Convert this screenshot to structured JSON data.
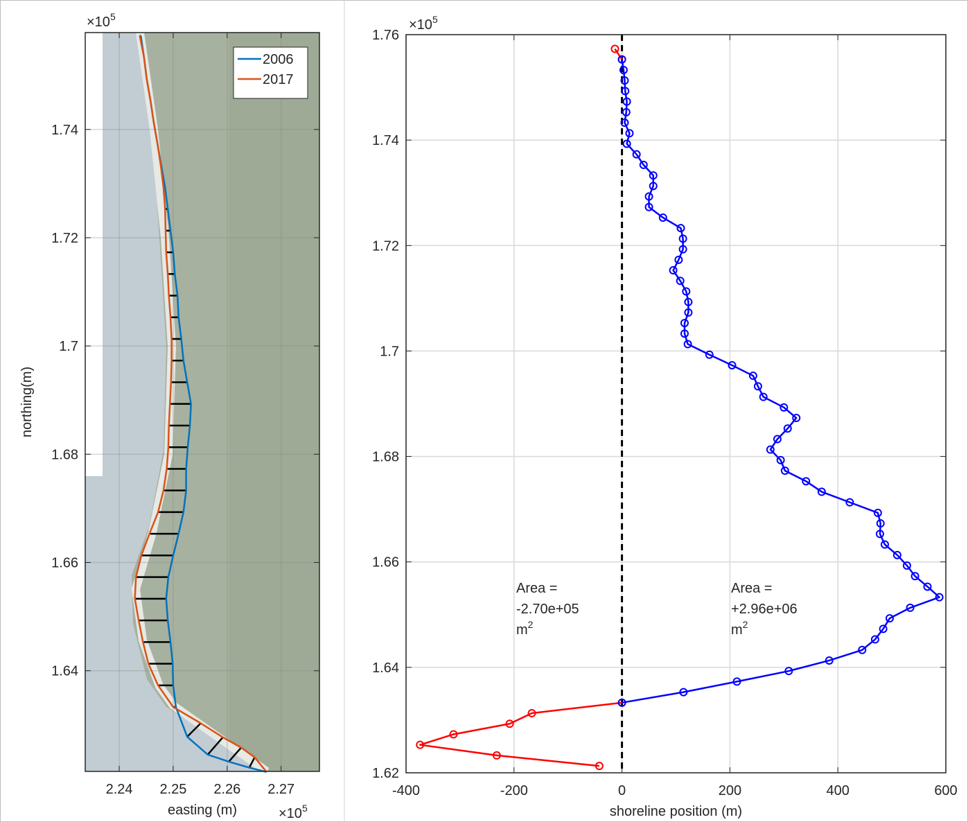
{
  "chart_data": [
    {
      "type": "line",
      "xlabel": "easting (m)",
      "ylabel": "northing(m)",
      "x_multiplier": {
        "base": "×10",
        "exponent": "5"
      },
      "y_multiplier": {
        "base": "×10",
        "exponent": "5"
      },
      "xlim": [
        2.2337,
        2.2771
      ],
      "ylim": [
        1.6214,
        1.7579
      ],
      "xticks": [
        2.24,
        2.25,
        2.26,
        2.27
      ],
      "yticks": [
        1.64,
        1.66,
        1.68,
        1.7,
        1.72,
        1.74
      ],
      "grid": true,
      "legend": "top-right",
      "transects": true,
      "transect_color": "#000000",
      "series": [
        {
          "name": "2006",
          "color": "#0072bd",
          "x": [
            2.244,
            2.2446,
            2.2451,
            2.2458,
            2.2464,
            2.2471,
            2.2478,
            2.2485,
            2.249,
            2.2495,
            2.25,
            2.2503,
            2.2508,
            2.251,
            2.2515,
            2.2519,
            2.2526,
            2.2533,
            2.2531,
            2.2527,
            2.2524,
            2.2524,
            2.2519,
            2.251,
            2.25,
            2.2491,
            2.2487,
            2.249,
            2.2495,
            2.2499,
            2.25,
            2.2505,
            2.2526,
            2.2564,
            2.2603,
            2.2641,
            2.2673
          ],
          "y": [
            1.7573,
            1.7533,
            1.7493,
            1.7453,
            1.7413,
            1.7373,
            1.7333,
            1.7293,
            1.7253,
            1.7213,
            1.7173,
            1.7133,
            1.7093,
            1.7053,
            1.7013,
            1.6973,
            1.6933,
            1.6893,
            1.6853,
            1.6813,
            1.6773,
            1.6733,
            1.6693,
            1.6653,
            1.6613,
            1.6573,
            1.6533,
            1.6493,
            1.6453,
            1.6413,
            1.6373,
            1.6333,
            1.6278,
            1.6245,
            1.6232,
            1.6221,
            1.6213
          ]
        },
        {
          "name": "2017",
          "color": "#d95319",
          "x": [
            2.2438,
            2.2446,
            2.2451,
            2.2458,
            2.2464,
            2.2471,
            2.2477,
            2.2482,
            2.2485,
            2.2486,
            2.2487,
            2.249,
            2.2492,
            2.2495,
            2.2497,
            2.2497,
            2.2496,
            2.2494,
            2.2492,
            2.2491,
            2.2488,
            2.2482,
            2.2472,
            2.2456,
            2.2441,
            2.2431,
            2.2429,
            2.2436,
            2.2444,
            2.2454,
            2.2472,
            2.25,
            2.2551,
            2.2592,
            2.2626,
            2.2651,
            2.2673
          ],
          "y": [
            1.7573,
            1.7533,
            1.7493,
            1.7453,
            1.7413,
            1.7373,
            1.7333,
            1.7293,
            1.7253,
            1.7213,
            1.7173,
            1.7133,
            1.7093,
            1.7053,
            1.7013,
            1.6973,
            1.6933,
            1.6893,
            1.6853,
            1.6813,
            1.6773,
            1.6733,
            1.6693,
            1.6653,
            1.6613,
            1.6573,
            1.6533,
            1.6493,
            1.6453,
            1.6413,
            1.6373,
            1.6333,
            1.6303,
            1.6277,
            1.6258,
            1.624,
            1.6213
          ]
        }
      ]
    },
    {
      "type": "line",
      "xlabel": "shoreline position (m)",
      "y_multiplier": {
        "base": "×10",
        "exponent": "5"
      },
      "xlim": [
        -400,
        600
      ],
      "ylim": [
        1.62,
        1.76
      ],
      "xticks": [
        -400,
        -200,
        0,
        200,
        400,
        600
      ],
      "yticks": [
        1.62,
        1.64,
        1.66,
        1.68,
        1.7,
        1.72,
        1.74,
        1.76
      ],
      "grid": true,
      "markers": "circle",
      "reference_line": {
        "x": 0,
        "color": "#000000",
        "dash": "dashed"
      },
      "series": [
        {
          "color": "#ff0000",
          "x": [
            -13,
            0,
            null,
            0,
            -167,
            -208,
            -312,
            -374,
            -232,
            -42
          ],
          "y": [
            1.7573,
            1.7553,
            null,
            1.6333,
            1.6313,
            1.6293,
            1.6273,
            1.6253,
            1.6233,
            1.6213
          ]
        },
        {
          "color": "#0000ff",
          "x": [
            0,
            3,
            5,
            6,
            9,
            8,
            5,
            14,
            9,
            27,
            40,
            58,
            58,
            50,
            50,
            76,
            109,
            113,
            113,
            105,
            95,
            108,
            119,
            123,
            123,
            116,
            116,
            122,
            162,
            204,
            243,
            252,
            262,
            300,
            323,
            307,
            288,
            275,
            294,
            302,
            341,
            370,
            422,
            474,
            479,
            478,
            487,
            510,
            528,
            543,
            566,
            588,
            534,
            496,
            484,
            469,
            445,
            384,
            309,
            213,
            114,
            0
          ],
          "y": [
            1.7553,
            1.7533,
            1.7513,
            1.7493,
            1.7473,
            1.7453,
            1.7433,
            1.7413,
            1.7393,
            1.7373,
            1.7353,
            1.7333,
            1.7313,
            1.7293,
            1.7273,
            1.7253,
            1.7233,
            1.7213,
            1.7193,
            1.7173,
            1.7153,
            1.7133,
            1.7113,
            1.7093,
            1.7073,
            1.7053,
            1.7033,
            1.7013,
            1.6993,
            1.6973,
            1.6953,
            1.6933,
            1.6913,
            1.6893,
            1.6873,
            1.6853,
            1.6833,
            1.6813,
            1.6793,
            1.6773,
            1.6753,
            1.6733,
            1.6713,
            1.6693,
            1.6673,
            1.6653,
            1.6633,
            1.6613,
            1.6593,
            1.6573,
            1.6553,
            1.6533,
            1.6513,
            1.6493,
            1.6473,
            1.6453,
            1.6433,
            1.6413,
            1.6393,
            1.6373,
            1.6353,
            1.6333
          ]
        }
      ],
      "annotations": [
        {
          "lines": [
            "Area =",
            "-2.70e+05",
            "m"
          ],
          "superscript": "2"
        },
        {
          "lines": [
            "Area =",
            "+2.96e+06",
            "m"
          ],
          "superscript": "2"
        }
      ]
    }
  ]
}
